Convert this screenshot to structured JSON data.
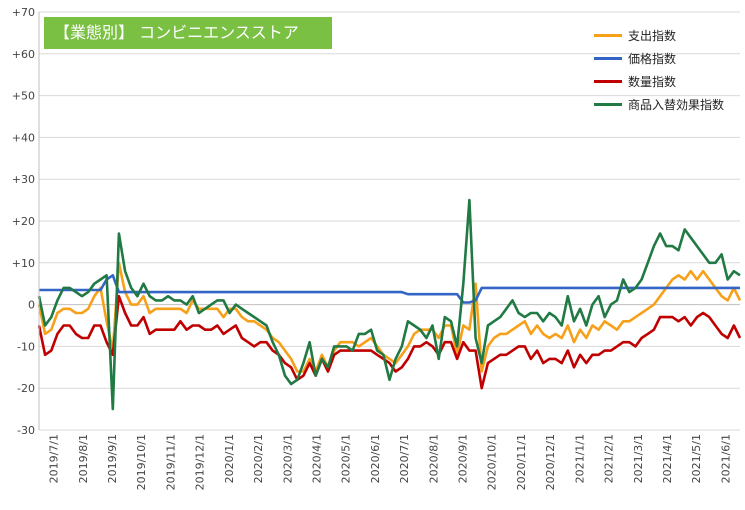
{
  "chart_data": {
    "type": "line",
    "title": "【業態別】 コンビニエンスストア",
    "ylim": [
      -30,
      70
    ],
    "yticks": [
      70,
      60,
      50,
      40,
      30,
      20,
      10,
      0,
      -10,
      -20,
      -30
    ],
    "ytick_labels": [
      "+70",
      "+60",
      "+50",
      "+40",
      "+30",
      "+20",
      "+10",
      "0",
      "-10",
      "-20",
      "-30"
    ],
    "grid": true,
    "legend_position": "top-right",
    "xtick_labels": [
      "2019/7/1",
      "2019/8/1",
      "2019/9/1",
      "2019/10/1",
      "2019/11/1",
      "2019/12/1",
      "2020/1/1",
      "2020/2/1",
      "2020/3/1",
      "2020/4/1",
      "2020/5/1",
      "2020/6/1",
      "2020/7/1",
      "2020/8/1",
      "2020/9/1",
      "2020/10/1",
      "2020/11/1",
      "2020/12/1",
      "2021/1/1",
      "2021/2/1",
      "2021/3/1",
      "2021/4/1",
      "2021/5/1",
      "2021/6/1"
    ],
    "series": [
      {
        "name": "支出指数",
        "color": "#f7a01a",
        "values": [
          0,
          -7,
          -6,
          -2,
          -1,
          -1,
          -2,
          -2,
          -1,
          2,
          4,
          -4,
          -11,
          10,
          3,
          0,
          0,
          2,
          -2,
          -1,
          -1,
          -1,
          -1,
          -1,
          -2,
          1,
          -1,
          -1,
          -1,
          -1,
          -3,
          -1,
          -1,
          -3,
          -4,
          -4,
          -5,
          -6,
          -8,
          -9,
          -11,
          -13,
          -16,
          -16,
          -13,
          -16,
          -12,
          -15,
          -11,
          -9,
          -9,
          -9,
          -10,
          -9,
          -8,
          -10,
          -12,
          -13,
          -14,
          -12,
          -10,
          -7,
          -6,
          -6,
          -6,
          -8,
          -5,
          -5,
          -12,
          -5,
          -6,
          5,
          -16,
          -10,
          -8,
          -7,
          -7,
          -6,
          -5,
          -4,
          -7,
          -5,
          -7,
          -8,
          -7,
          -8,
          -5,
          -9,
          -6,
          -8,
          -5,
          -6,
          -4,
          -5,
          -6,
          -4,
          -4,
          -3,
          -2,
          -1,
          0,
          2,
          4,
          6,
          7,
          6,
          8,
          6,
          8,
          6,
          4,
          2,
          1,
          4,
          1
        ]
      },
      {
        "name": "価格指数",
        "color": "#3465c6",
        "values": [
          3.5,
          3.5,
          3.5,
          3.5,
          3.5,
          3.5,
          3.5,
          3.5,
          3.5,
          3.5,
          3.5,
          6,
          7,
          3,
          3,
          3,
          3,
          3,
          3,
          3,
          3,
          3,
          3,
          3,
          3,
          3,
          3,
          3,
          3,
          3,
          3,
          3,
          3,
          3,
          3,
          3,
          3,
          3,
          3,
          3,
          3,
          3,
          3,
          3,
          3,
          3,
          3,
          3,
          3,
          3,
          3,
          3,
          3,
          3,
          3,
          3,
          3,
          3,
          3,
          3,
          2.5,
          2.5,
          2.5,
          2.5,
          2.5,
          2.5,
          2.5,
          2.5,
          2.5,
          0.5,
          0.5,
          1,
          4,
          4,
          4,
          4,
          4,
          4,
          4,
          4,
          4,
          4,
          4,
          4,
          4,
          4,
          4,
          4,
          4,
          4,
          4,
          4,
          4,
          4,
          4,
          4,
          4,
          4,
          4,
          4,
          4,
          4,
          4,
          4,
          4,
          4,
          4,
          4,
          4,
          4,
          4,
          4,
          4,
          4,
          4
        ]
      },
      {
        "name": "数量指数",
        "color": "#c00000",
        "values": [
          -5,
          -12,
          -11,
          -7,
          -5,
          -5,
          -7,
          -8,
          -8,
          -5,
          -5,
          -9,
          -12,
          2,
          -2,
          -5,
          -5,
          -3,
          -7,
          -6,
          -6,
          -6,
          -6,
          -4,
          -6,
          -5,
          -5,
          -6,
          -6,
          -5,
          -7,
          -6,
          -5,
          -8,
          -9,
          -10,
          -9,
          -9,
          -11,
          -12,
          -14,
          -15,
          -18,
          -17,
          -14,
          -17,
          -13,
          -16,
          -12,
          -11,
          -11,
          -11,
          -11,
          -11,
          -11,
          -12,
          -13,
          -14,
          -16,
          -15,
          -13,
          -10,
          -10,
          -9,
          -10,
          -12,
          -9,
          -9,
          -13,
          -9,
          -11,
          -11,
          -20,
          -14,
          -13,
          -12,
          -12,
          -11,
          -10,
          -10,
          -13,
          -11,
          -14,
          -13,
          -13,
          -14,
          -11,
          -15,
          -12,
          -14,
          -12,
          -12,
          -11,
          -11,
          -10,
          -9,
          -9,
          -10,
          -8,
          -7,
          -6,
          -3,
          -3,
          -3,
          -4,
          -3,
          -5,
          -3,
          -2,
          -3,
          -5,
          -7,
          -8,
          -5,
          -8
        ]
      },
      {
        "name": "商品入替効果指数",
        "color": "#217a43",
        "values": [
          2,
          -5,
          -3,
          1,
          4,
          4,
          3,
          2,
          3,
          5,
          6,
          7,
          -25,
          17,
          8,
          4,
          2,
          5,
          2,
          1,
          1,
          2,
          1,
          1,
          0,
          2,
          -2,
          -1,
          0,
          1,
          1,
          -2,
          0,
          -1,
          -2,
          -3,
          -4,
          -5,
          -9,
          -12,
          -17,
          -19,
          -18,
          -14,
          -9,
          -17,
          -13,
          -15,
          -10,
          -10,
          -10,
          -11,
          -7,
          -7,
          -6,
          -11,
          -12,
          -18,
          -13,
          -10,
          -4,
          -5,
          -6,
          -8,
          -5,
          -13,
          -3,
          -4,
          -10,
          5,
          25,
          -8,
          -14,
          -5,
          -4,
          -3,
          -1,
          1,
          -2,
          -3,
          -2,
          -2,
          -4,
          -2,
          -3,
          -5,
          2,
          -4,
          -1,
          -5,
          0,
          2,
          -3,
          0,
          1,
          6,
          3,
          4,
          6,
          10,
          14,
          17,
          14,
          14,
          13,
          18,
          16,
          14,
          12,
          10,
          10,
          12,
          6,
          8,
          7
        ]
      }
    ]
  }
}
